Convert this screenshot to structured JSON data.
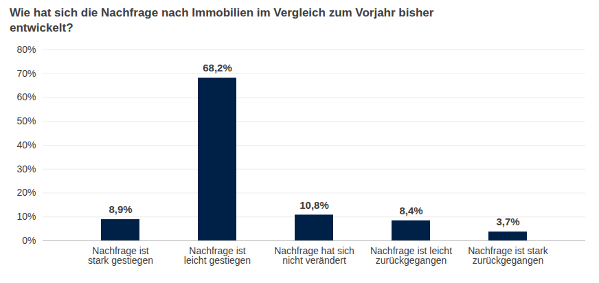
{
  "chart_data": {
    "type": "bar",
    "title": "Wie hat sich die Nachfrage nach Immobilien im Vergleich zum Vorjahr bisher entwickelt?",
    "categories": [
      "Nachfrage ist\nstark gestiegen",
      "Nachfrage ist\nleicht gestiegen",
      "Nachfrage hat sich\nnicht verändert",
      "Nachfrage ist leicht\nzurückgegangen",
      "Nachfrage ist stark\nzurückgegangen"
    ],
    "values": [
      8.9,
      68.2,
      10.8,
      8.4,
      3.7
    ],
    "value_labels": [
      "8,9%",
      "68,2%",
      "10,8%",
      "8,4%",
      "3,7%"
    ],
    "color": "#002147",
    "ylim": [
      0,
      80
    ],
    "yticks": [
      {
        "value": 0,
        "label": "0%"
      },
      {
        "value": 10,
        "label": "10%"
      },
      {
        "value": 20,
        "label": "20%"
      },
      {
        "value": 30,
        "label": "30%"
      },
      {
        "value": 40,
        "label": "40%"
      },
      {
        "value": 50,
        "label": "50%"
      },
      {
        "value": 60,
        "label": "60%"
      },
      {
        "value": 70,
        "label": "70%"
      },
      {
        "value": 80,
        "label": "80%"
      }
    ],
    "grid": true,
    "data_labels": true
  }
}
